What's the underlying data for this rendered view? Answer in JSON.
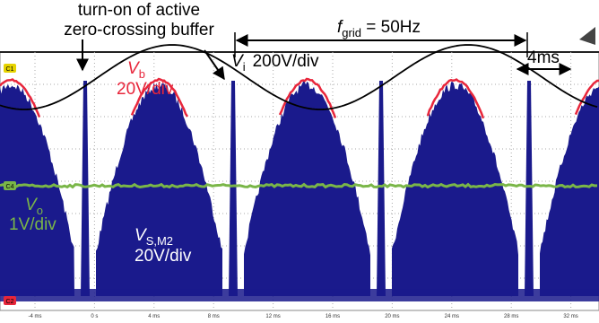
{
  "annotations": {
    "buffer_note": [
      "turn-on of active",
      "zero-crossing buffer"
    ],
    "f_grid": {
      "symbol": "f",
      "sub": "grid",
      "text": " = 50Hz"
    },
    "v_i": {
      "symbol": "V",
      "sub": "i",
      "scale": "200V/div"
    },
    "v_b": {
      "symbol": "V",
      "sub": "b",
      "scale": "20V/div"
    },
    "period": "4ms",
    "v_o": {
      "symbol": "V",
      "sub": "o",
      "scale": "1V/div"
    },
    "v_sm2": {
      "symbol": "V",
      "sub": "S,M2",
      "scale": "20V/div"
    }
  },
  "channels": [
    "C1",
    "C4",
    "C2"
  ],
  "x_axis": {
    "ticks": [
      "-4 ms",
      "0 s",
      "4 ms",
      "8 ms",
      "12 ms",
      "16 ms",
      "20 ms",
      "24 ms",
      "28 ms",
      "32 ms"
    ]
  }
}
